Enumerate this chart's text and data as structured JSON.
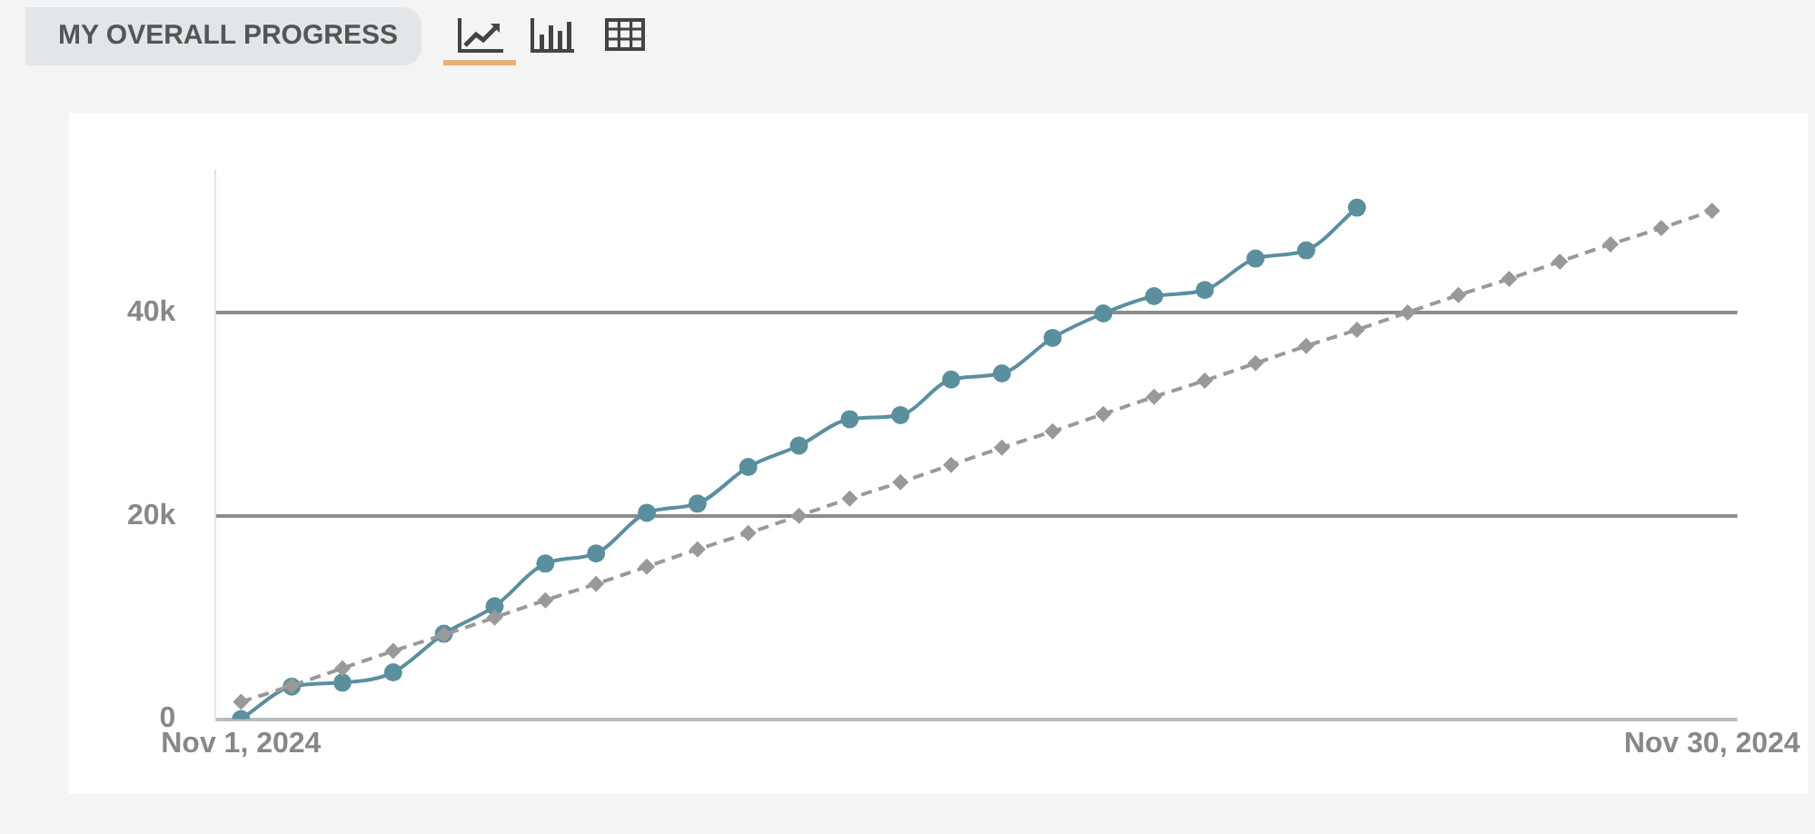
{
  "chart_data": {
    "type": "line",
    "title": "MY OVERALL PROGRESS",
    "xlim": [
      "2024-10-31T12:00",
      "2024-11-30T12:00"
    ],
    "xticks": [
      {
        "value": "2024-11-01",
        "label": "Nov 1, 2024"
      },
      {
        "value": "2024-11-30",
        "label": "Nov 30, 2024"
      }
    ],
    "ylim": [
      0,
      54000
    ],
    "yticks": [
      {
        "value": 0,
        "label": "0"
      },
      {
        "value": 20000,
        "label": "20k"
      },
      {
        "value": 40000,
        "label": "40k"
      }
    ],
    "grid": "y",
    "legend": false,
    "series": [
      {
        "color": "#999999",
        "line_style": "dashed",
        "marker": "diamond",
        "x": [
          "2024-11-01",
          "2024-11-02",
          "2024-11-03",
          "2024-11-04",
          "2024-11-05",
          "2024-11-06",
          "2024-11-07",
          "2024-11-08",
          "2024-11-09",
          "2024-11-10",
          "2024-11-11",
          "2024-11-12",
          "2024-11-13",
          "2024-11-14",
          "2024-11-15",
          "2024-11-16",
          "2024-11-17",
          "2024-11-18",
          "2024-11-19",
          "2024-11-20",
          "2024-11-21",
          "2024-11-22",
          "2024-11-23",
          "2024-11-24",
          "2024-11-25",
          "2024-11-26",
          "2024-11-27",
          "2024-11-28",
          "2024-11-29",
          "2024-11-30"
        ],
        "values": [
          1700,
          3300,
          5000,
          6700,
          8300,
          10000,
          11700,
          13300,
          15000,
          16700,
          18300,
          20000,
          21700,
          23300,
          25000,
          26700,
          28300,
          30000,
          31700,
          33300,
          35000,
          36700,
          38300,
          40000,
          41700,
          43300,
          45000,
          46700,
          48300,
          50000
        ]
      },
      {
        "color": "#5b8f9e",
        "line_style": "solid",
        "marker": "circle",
        "x": [
          "2024-11-01",
          "2024-11-02",
          "2024-11-03",
          "2024-11-04",
          "2024-11-05",
          "2024-11-06",
          "2024-11-07",
          "2024-11-08",
          "2024-11-09",
          "2024-11-10",
          "2024-11-11",
          "2024-11-12",
          "2024-11-13",
          "2024-11-14",
          "2024-11-15",
          "2024-11-16",
          "2024-11-17",
          "2024-11-18",
          "2024-11-19",
          "2024-11-20",
          "2024-11-21",
          "2024-11-22",
          "2024-11-23"
        ],
        "values": [
          0,
          3200,
          3600,
          4600,
          8400,
          11100,
          15300,
          16300,
          20300,
          21200,
          24800,
          26900,
          29500,
          29900,
          33400,
          34000,
          37500,
          39900,
          41600,
          42200,
          45300,
          46100,
          50300
        ]
      }
    ]
  }
}
